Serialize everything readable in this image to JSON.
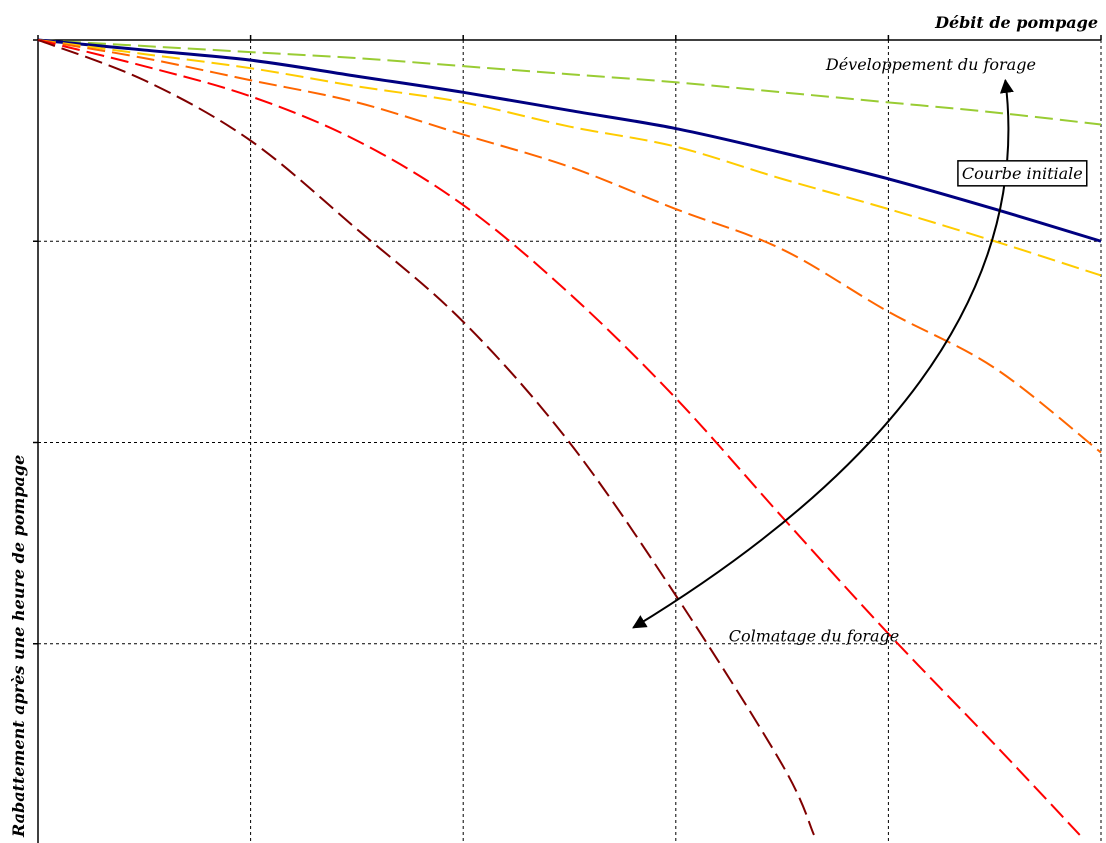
{
  "chart_data": {
    "type": "line",
    "title": "",
    "xlabel": "Débit de pompage",
    "ylabel": "Rabattement après une heure de pompage",
    "xlim": [
      0,
      5
    ],
    "ylim": [
      0,
      4
    ],
    "y_inverted": true,
    "grid": true,
    "x_ticks": [
      0,
      1,
      2,
      3,
      4,
      5
    ],
    "y_ticks": [
      0,
      1,
      2,
      3,
      4
    ],
    "tick_labels_shown": false,
    "series": [
      {
        "color": "#99cc33",
        "style": "dashed",
        "x": [
          0,
          0.5,
          1,
          1.5,
          2,
          2.5,
          3,
          3.5,
          4,
          4.5,
          5
        ],
        "y": [
          0,
          0.03,
          0.06,
          0.09,
          0.13,
          0.17,
          0.21,
          0.26,
          0.31,
          0.36,
          0.42
        ]
      },
      {
        "color": "#000080",
        "style": "solid",
        "x": [
          0,
          0.5,
          1,
          1.5,
          2,
          2.5,
          3,
          3.5,
          4,
          4.5,
          5
        ],
        "y": [
          0,
          0.05,
          0.1,
          0.18,
          0.26,
          0.35,
          0.44,
          0.56,
          0.69,
          0.84,
          1.0
        ]
      },
      {
        "color": "#ffcc00",
        "style": "dashed",
        "x": [
          0,
          0.5,
          1,
          1.5,
          2,
          2.5,
          3,
          3.5,
          4,
          4.5,
          5
        ],
        "y": [
          0,
          0.07,
          0.14,
          0.23,
          0.31,
          0.43,
          0.53,
          0.69,
          0.84,
          1.0,
          1.17
        ]
      },
      {
        "color": "#ff6600",
        "style": "dashed",
        "x": [
          0,
          0.5,
          1,
          1.5,
          2,
          2.5,
          3,
          3.5,
          4,
          4.5,
          5
        ],
        "y": [
          0,
          0.09,
          0.2,
          0.31,
          0.47,
          0.63,
          0.84,
          1.04,
          1.35,
          1.63,
          2.05
        ]
      },
      {
        "color": "#ff0000",
        "style": "dashed",
        "x": [
          0,
          0.5,
          1,
          1.5,
          2,
          2.5,
          3,
          3.5,
          4,
          4.5,
          4.9
        ],
        "y": [
          0,
          0.13,
          0.28,
          0.5,
          0.82,
          1.26,
          1.78,
          2.37,
          2.95,
          3.5,
          3.95
        ]
      },
      {
        "color": "#800000",
        "style": "dashed",
        "x": [
          0,
          0.5,
          1,
          1.5,
          2,
          2.5,
          3,
          3.5,
          3.65
        ],
        "y": [
          0,
          0.2,
          0.5,
          0.94,
          1.4,
          2.0,
          2.76,
          3.6,
          3.95
        ]
      }
    ],
    "annotations": [
      {
        "text": "Développement du forage",
        "at": [
          4.2,
          0.12
        ]
      },
      {
        "text": "Courbe initiale",
        "at": [
          4.63,
          0.66
        ],
        "boxed": true
      },
      {
        "text": "Colmatage du forage",
        "at": [
          3.65,
          2.96
        ]
      }
    ],
    "arrow": {
      "from": [
        2.8,
        2.92
      ],
      "to": [
        4.55,
        0.2
      ],
      "heads": "both",
      "via": [
        4.2,
        1.62
      ]
    }
  }
}
